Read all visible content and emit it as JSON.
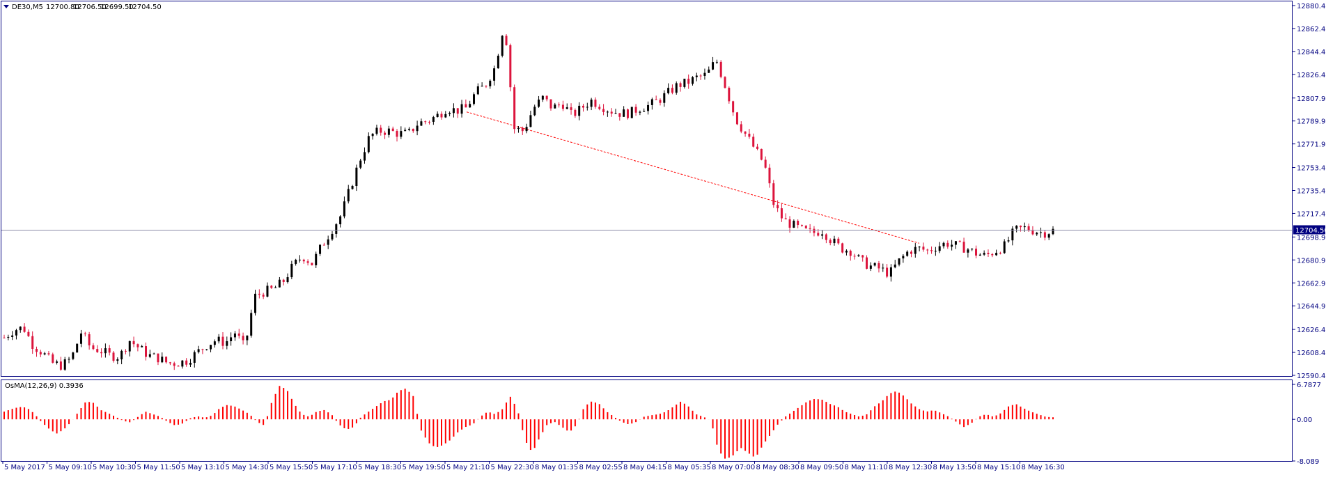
{
  "main_chart": {
    "symbol_label": "DE30,M5",
    "ohlc": {
      "open": "12700.80",
      "high": "12706.50",
      "low": "12699.50",
      "close": "12704.50"
    },
    "current_price_tag": "12704.50",
    "price_ticks": [
      "12880.40",
      "12862.40",
      "12844.40",
      "12826.40",
      "12807.90",
      "12789.90",
      "12771.90",
      "12753.40",
      "12735.40",
      "12717.40",
      "12698.90",
      "12680.90",
      "12662.90",
      "12644.90",
      "12626.40",
      "12608.40",
      "12590.40"
    ],
    "ylim": [
      12590.4,
      12880.4
    ],
    "current_price": 12704.5
  },
  "osma": {
    "label": "OsMA(12,26,9) 0.3936",
    "ticks": [
      "6.7877",
      "0.00",
      "-8.089"
    ],
    "ylim": [
      -8.089,
      6.7877
    ]
  },
  "time_labels": [
    "5 May 2017",
    "5 May 09:10",
    "5 May 10:30",
    "5 May 11:50",
    "5 May 13:10",
    "5 May 14:30",
    "5 May 15:50",
    "5 May 17:10",
    "5 May 18:30",
    "5 May 19:50",
    "5 May 21:10",
    "5 May 22:30",
    "8 May 01:35",
    "8 May 02:55",
    "8 May 04:15",
    "8 May 05:35",
    "8 May 07:00",
    "8 May 08:30",
    "8 May 09:50",
    "8 May 11:10",
    "8 May 12:30",
    "8 May 13:50",
    "8 May 15:10",
    "8 May 16:30"
  ],
  "colors": {
    "axis": "#000080",
    "bull_body": "#000000",
    "bear_body": "#dc143c",
    "wick_up": "#32cd32",
    "osma_bar": "#ff0000",
    "current_line": "#8c8ca8",
    "trendline": "#ff0000",
    "tag_bg": "#000080"
  },
  "icons": {
    "menu": "triangle-down-icon"
  },
  "chart_data": [
    {
      "type": "candlestick",
      "title": "DE30,M5",
      "ylim": [
        12590.4,
        12880.4
      ],
      "x_labels": [
        "5 May 2017",
        "5 May 09:10",
        "5 May 10:30",
        "5 May 11:50",
        "5 May 13:10",
        "5 May 14:30",
        "5 May 15:50",
        "5 May 17:10",
        "5 May 18:30",
        "5 May 19:50",
        "5 May 21:10",
        "5 May 22:30",
        "8 May 01:35",
        "8 May 02:55",
        "8 May 04:15",
        "8 May 05:35",
        "8 May 07:00",
        "8 May 08:30",
        "8 May 09:50",
        "8 May 11:10",
        "8 May 12:30",
        "8 May 13:50",
        "8 May 15:10",
        "8 May 16:30"
      ],
      "close_path": [
        12620,
        12626,
        12628,
        12614,
        12608,
        12600,
        12598,
        12604,
        12624,
        12612,
        12610,
        12606,
        12605,
        12618,
        12612,
        12606,
        12604,
        12600,
        12600,
        12602,
        12608,
        12614,
        12618,
        12616,
        12624,
        12612,
        12652,
        12656,
        12658,
        12664,
        12676,
        12684,
        12678,
        12692,
        12704,
        12716,
        12738,
        12760,
        12778,
        12782,
        12782,
        12780,
        12780,
        12788,
        12790,
        12794,
        12800,
        12798,
        12800,
        12812,
        12818,
        12832,
        12868,
        12784,
        12782,
        12800,
        12808,
        12800,
        12804,
        12794,
        12800,
        12806,
        12802,
        12798,
        12796,
        12796,
        12800,
        12802,
        12806,
        12812,
        12818,
        12820,
        12824,
        12826,
        12838,
        12816,
        12792,
        12780,
        12768,
        12756,
        12724,
        12712,
        12708,
        12704,
        12702,
        12704,
        12696,
        12690,
        12688,
        12680,
        12676,
        12674,
        12670,
        12680,
        12688,
        12690,
        12688,
        12692,
        12694,
        12692,
        12690,
        12686,
        12684,
        12688,
        12692,
        12704,
        12706,
        12704,
        12702,
        12704
      ]
    },
    {
      "type": "bar",
      "title": "OsMA(12,26,9) 0.3936",
      "ylim": [
        -8.089,
        6.7877
      ],
      "bar_values": [
        1.5,
        2.0,
        2.4,
        2.3,
        1.2,
        -0.5,
        -1.8,
        -2.8,
        -2.0,
        -0.5,
        1.5,
        3.5,
        3.2,
        1.8,
        1.2,
        0.5,
        -0.3,
        -0.6,
        0.5,
        1.5,
        1.0,
        0.5,
        -0.5,
        -1.2,
        -0.8,
        0.2,
        0.6,
        0.3,
        0.8,
        2.2,
        2.8,
        2.5,
        1.8,
        1.0,
        -0.5,
        -1.2,
        3.5,
        6.5,
        5.8,
        3.0,
        1.0,
        0.5,
        1.5,
        1.8,
        1.0,
        -1.0,
        -2.0,
        -1.5,
        0.5,
        1.5,
        2.5,
        3.5,
        3.8,
        5.5,
        6.0,
        4.5,
        -2.0,
        -4.5,
        -5.5,
        -5.0,
        -4.0,
        -2.5,
        -1.5,
        -1.0,
        0.5,
        1.5,
        1.0,
        2.0,
        4.5,
        2.0,
        -4.0,
        -6.5,
        -3.5,
        -1.0,
        -0.5,
        -1.5,
        -2.5,
        -1.0,
        2.5,
        3.5,
        3.0,
        1.5,
        0.5,
        -0.5,
        -1.0,
        -0.5,
        0.5,
        0.8,
        1.0,
        1.5,
        2.5,
        3.5,
        2.5,
        1.0,
        0.5,
        -0.2,
        -6.0,
        -7.8,
        -7.0,
        -5.5,
        -6.5,
        -7.5,
        -5.0,
        -3.0,
        -1.0,
        0.5,
        1.5,
        2.5,
        3.5,
        4.0,
        3.8,
        3.0,
        2.5,
        1.5,
        1.0,
        0.5,
        1.0,
        2.5,
        3.5,
        5.0,
        5.5,
        4.5,
        3.0,
        2.0,
        1.5,
        1.8,
        1.2,
        0.5,
        -0.5,
        -1.5,
        -0.8,
        0.5,
        1.0,
        0.5,
        1.2,
        2.5,
        3.0,
        2.2,
        1.5,
        1.0,
        0.5,
        0.4
      ]
    }
  ]
}
